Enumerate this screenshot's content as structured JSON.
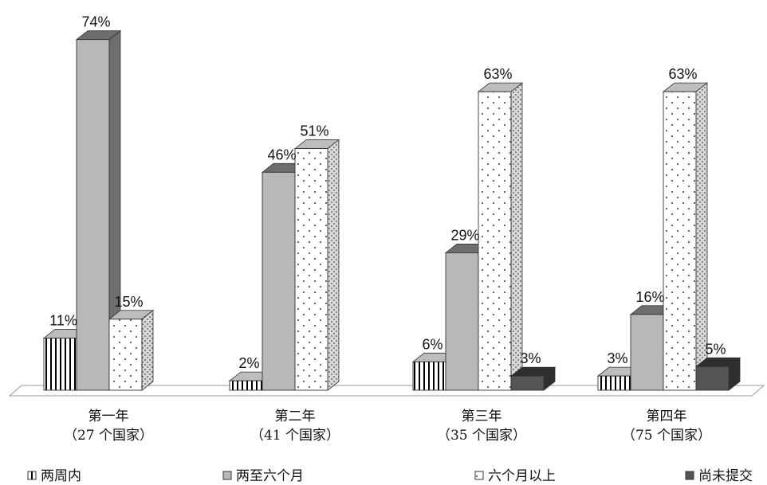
{
  "chart_data": {
    "type": "bar",
    "categories": [
      {
        "line1": "第一年",
        "line2": "（27 个国家）"
      },
      {
        "line1": "第二年",
        "line2": "（41 个国家）"
      },
      {
        "line1": "第三年",
        "line2": "（35 个国家）"
      },
      {
        "line1": "第四年",
        "line2": "（75 个国家）"
      }
    ],
    "series": [
      {
        "name": "两周内",
        "pattern": "vertical-stripes",
        "color": "#ffffff",
        "side_color": "#9a9a9a",
        "values": [
          11,
          2,
          6,
          3
        ],
        "labels": [
          "11%",
          "2%",
          "6%",
          "3%"
        ]
      },
      {
        "name": "两至六个月",
        "pattern": "solid",
        "color": "#b8b8b8",
        "side_color": "#6e6e6e",
        "values": [
          74,
          46,
          29,
          16
        ],
        "labels": [
          "74%",
          "46%",
          "29%",
          "16%"
        ]
      },
      {
        "name": "六个月以上",
        "pattern": "dots",
        "color": "#ffffff",
        "side_color": "#a9a9a9",
        "values": [
          15,
          51,
          63,
          63
        ],
        "labels": [
          "15%",
          "51%",
          "63%",
          "63%"
        ]
      },
      {
        "name": "尚未提交",
        "pattern": "solid",
        "color": "#555555",
        "side_color": "#2e2e2e",
        "values": [
          null,
          null,
          3,
          5
        ],
        "labels": [
          null,
          null,
          "3%",
          "5%"
        ]
      }
    ],
    "unit": "%",
    "ylim": [
      0,
      80
    ],
    "grid": false,
    "legend_position": "bottom",
    "style": "3d-column"
  }
}
